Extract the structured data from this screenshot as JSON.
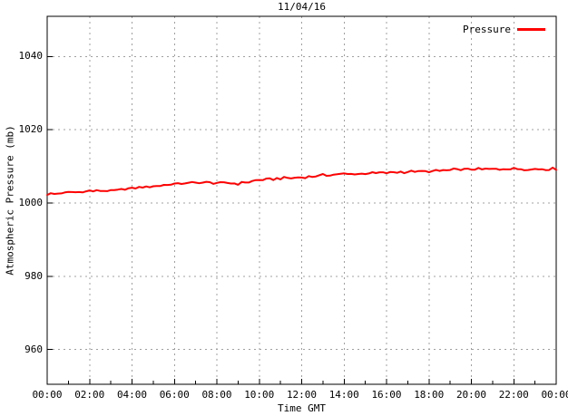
{
  "chart_data": {
    "type": "line",
    "title": "11/04/16",
    "xlabel": "Time GMT",
    "ylabel": "Atmospheric Pressure (mb)",
    "x_tick_labels": [
      "00:00",
      "02:00",
      "04:00",
      "06:00",
      "08:00",
      "10:00",
      "12:00",
      "14:00",
      "16:00",
      "18:00",
      "20:00",
      "22:00",
      "00:00"
    ],
    "x_tick_hours": [
      0,
      2,
      4,
      6,
      8,
      10,
      12,
      14,
      16,
      18,
      20,
      22,
      24
    ],
    "minor_x_tick_every_hours": 1,
    "y_ticks": [
      960,
      980,
      1000,
      1020,
      1040
    ],
    "ylim": [
      950.5,
      1051
    ],
    "xlim_hours": [
      0,
      24
    ],
    "grid": true,
    "grid_color": "#a0a0a0",
    "axis_color": "#000000",
    "background_color": "#ffffff",
    "legend": {
      "position": "top-right",
      "entries": [
        {
          "label": "Pressure",
          "color": "#ff0000"
        }
      ]
    },
    "series": [
      {
        "name": "Pressure",
        "color": "#ff0000",
        "x_hours": [
          0,
          1,
          2,
          3,
          4,
          5,
          6,
          7,
          8,
          9,
          10,
          11,
          12,
          13,
          14,
          15,
          16,
          17,
          18,
          19,
          20,
          21,
          22,
          23,
          24
        ],
        "values": [
          1002.4,
          1002.8,
          1003.3,
          1003.3,
          1004.0,
          1004.6,
          1005.2,
          1005.6,
          1005.5,
          1005.3,
          1006.3,
          1006.7,
          1007.0,
          1007.6,
          1007.9,
          1008.1,
          1008.3,
          1008.5,
          1008.7,
          1009.0,
          1009.3,
          1009.2,
          1009.4,
          1009.2,
          1009.4
        ],
        "noise_amplitude_mb": 0.35
      }
    ]
  }
}
